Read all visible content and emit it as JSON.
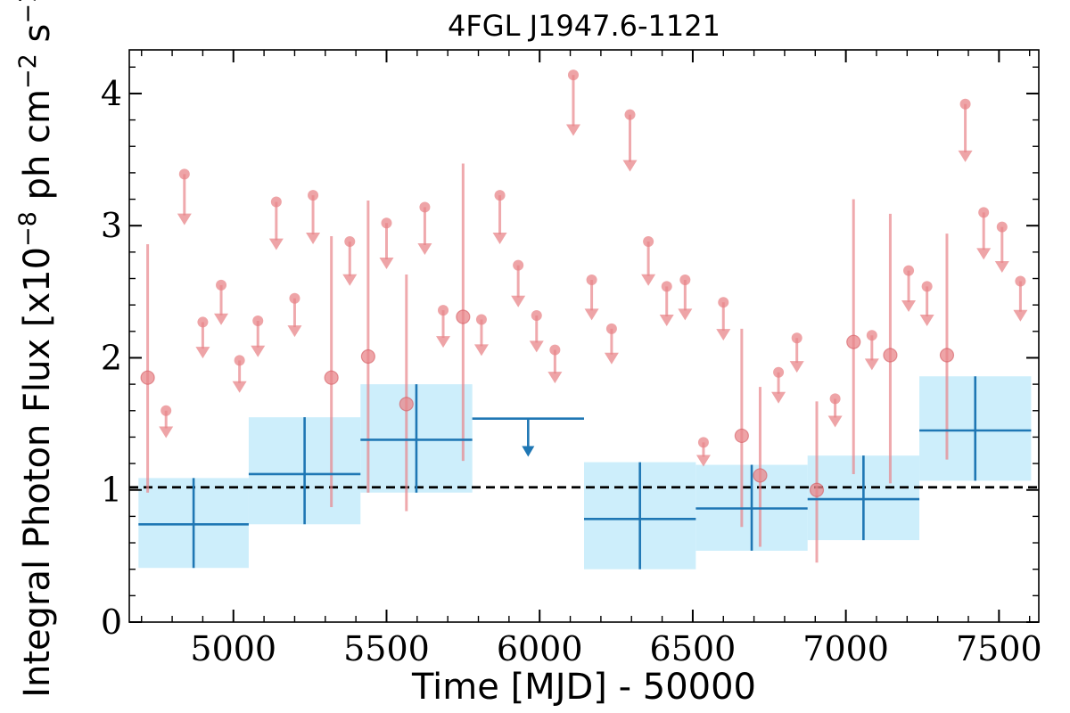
{
  "chart_data": {
    "type": "scatter",
    "title": "4FGL J1947.6-1121",
    "xlabel": "Time [MJD] - 50000",
    "ylabel": "Integral Photon Flux [x10^-8 ph cm^-2 s^-1]",
    "xlim": [
      4660,
      7630
    ],
    "ylim": [
      0,
      4.33
    ],
    "x_ticks": [
      "5000",
      "5500",
      "6000",
      "6500",
      "7000",
      "7500"
    ],
    "y_ticks": [
      "0",
      "1",
      "2",
      "3",
      "4"
    ],
    "reference_line": {
      "y": 1.02,
      "style": "dashed",
      "color": "#000000"
    },
    "colors": {
      "short_bins": "#e8858a",
      "long_bins": "#1f77b4",
      "long_band": "#cdeefb"
    },
    "short_bins": {
      "detections": [
        {
          "x": 4720,
          "y": 1.85,
          "ylo": 0.98,
          "yhi": 2.86
        },
        {
          "x": 5320,
          "y": 1.85,
          "ylo": 0.87,
          "yhi": 2.92
        },
        {
          "x": 5440,
          "y": 2.01,
          "ylo": 0.98,
          "yhi": 3.19
        },
        {
          "x": 5565,
          "y": 1.65,
          "ylo": 0.84,
          "yhi": 2.63
        },
        {
          "x": 5750,
          "y": 2.31,
          "ylo": 1.22,
          "yhi": 3.47
        },
        {
          "x": 6660,
          "y": 1.41,
          "ylo": 0.72,
          "yhi": 2.22
        },
        {
          "x": 6720,
          "y": 1.11,
          "ylo": 0.57,
          "yhi": 1.78
        },
        {
          "x": 6905,
          "y": 1.0,
          "ylo": 0.45,
          "yhi": 1.67
        },
        {
          "x": 7025,
          "y": 2.12,
          "ylo": 1.12,
          "yhi": 3.2
        },
        {
          "x": 7145,
          "y": 2.02,
          "ylo": 1.05,
          "yhi": 3.09
        },
        {
          "x": 7330,
          "y": 2.02,
          "ylo": 1.23,
          "yhi": 2.94
        }
      ],
      "upper_limits": [
        {
          "x": 4780,
          "y": 1.6
        },
        {
          "x": 4840,
          "y": 3.39
        },
        {
          "x": 4900,
          "y": 2.27
        },
        {
          "x": 4960,
          "y": 2.55
        },
        {
          "x": 5020,
          "y": 1.98
        },
        {
          "x": 5080,
          "y": 2.28
        },
        {
          "x": 5140,
          "y": 3.18
        },
        {
          "x": 5200,
          "y": 2.45
        },
        {
          "x": 5260,
          "y": 3.23
        },
        {
          "x": 5380,
          "y": 2.88
        },
        {
          "x": 5500,
          "y": 3.02
        },
        {
          "x": 5625,
          "y": 3.14
        },
        {
          "x": 5685,
          "y": 2.36
        },
        {
          "x": 5810,
          "y": 2.29
        },
        {
          "x": 5870,
          "y": 3.23
        },
        {
          "x": 5930,
          "y": 2.7
        },
        {
          "x": 5990,
          "y": 2.32
        },
        {
          "x": 6050,
          "y": 2.06
        },
        {
          "x": 6110,
          "y": 4.14
        },
        {
          "x": 6170,
          "y": 2.59
        },
        {
          "x": 6235,
          "y": 2.22
        },
        {
          "x": 6295,
          "y": 3.84
        },
        {
          "x": 6355,
          "y": 2.88
        },
        {
          "x": 6415,
          "y": 2.54
        },
        {
          "x": 6475,
          "y": 2.59
        },
        {
          "x": 6535,
          "y": 1.36
        },
        {
          "x": 6600,
          "y": 2.42
        },
        {
          "x": 6780,
          "y": 1.89
        },
        {
          "x": 6840,
          "y": 2.15
        },
        {
          "x": 6965,
          "y": 1.69
        },
        {
          "x": 7085,
          "y": 2.17
        },
        {
          "x": 7205,
          "y": 2.66
        },
        {
          "x": 7265,
          "y": 2.54
        },
        {
          "x": 7390,
          "y": 3.92
        },
        {
          "x": 7450,
          "y": 3.1
        },
        {
          "x": 7510,
          "y": 2.99
        },
        {
          "x": 7570,
          "y": 2.58
        }
      ]
    },
    "long_bins": {
      "detections": [
        {
          "x0": 4690,
          "x1": 5050,
          "y": 0.74,
          "ylo": 0.41,
          "yhi": 1.09
        },
        {
          "x0": 5050,
          "x1": 5415,
          "y": 1.12,
          "ylo": 0.74,
          "yhi": 1.55
        },
        {
          "x0": 5415,
          "x1": 5780,
          "y": 1.38,
          "ylo": 0.98,
          "yhi": 1.8
        },
        {
          "x0": 6145,
          "x1": 6510,
          "y": 0.78,
          "ylo": 0.4,
          "yhi": 1.21
        },
        {
          "x0": 6510,
          "x1": 6875,
          "y": 0.86,
          "ylo": 0.54,
          "yhi": 1.19
        },
        {
          "x0": 6875,
          "x1": 7240,
          "y": 0.93,
          "ylo": 0.62,
          "yhi": 1.26
        },
        {
          "x0": 7240,
          "x1": 7605,
          "y": 1.45,
          "ylo": 1.07,
          "yhi": 1.86
        }
      ],
      "upper_limits": [
        {
          "x0": 5780,
          "x1": 6145,
          "y": 1.54
        }
      ]
    }
  }
}
